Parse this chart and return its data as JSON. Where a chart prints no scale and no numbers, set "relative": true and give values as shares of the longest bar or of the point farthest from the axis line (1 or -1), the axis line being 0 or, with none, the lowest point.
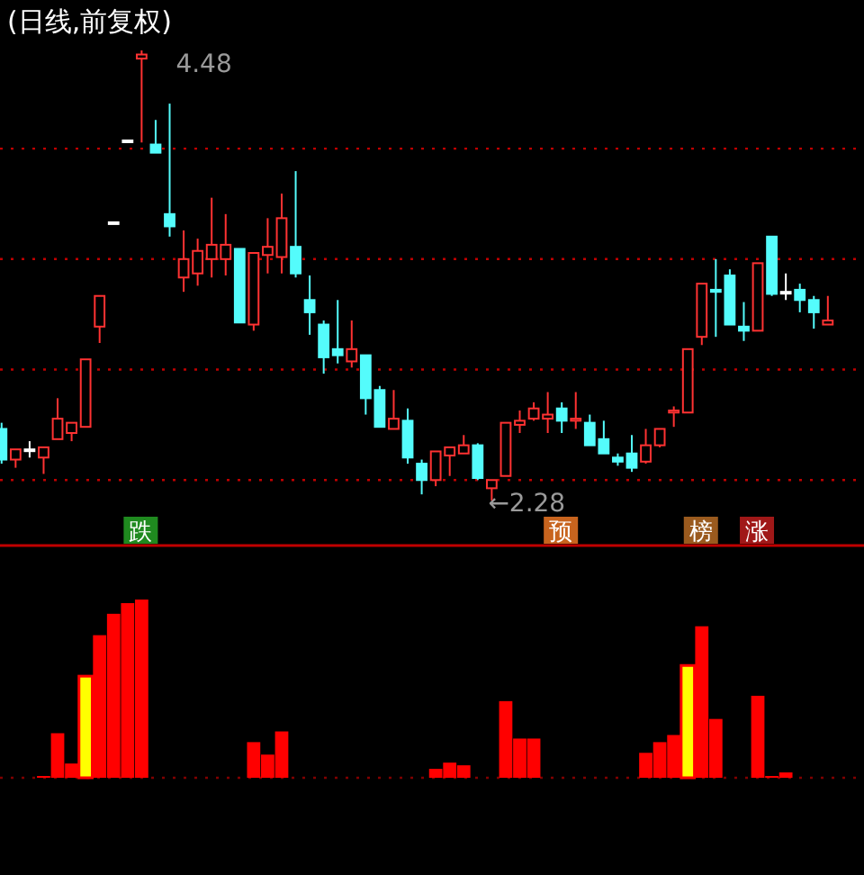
{
  "chart_data": [
    {
      "type": "candlestick",
      "title": "(日线,前复权)",
      "categories": [
        null,
        null,
        null,
        null,
        null,
        null,
        null,
        null,
        null,
        null,
        null,
        null,
        null,
        null,
        null,
        null,
        null,
        null,
        null,
        null,
        null,
        null,
        null,
        null,
        null,
        null,
        null,
        null,
        null,
        null,
        null,
        null,
        null,
        null,
        null,
        null,
        null,
        null,
        null,
        null,
        null,
        null,
        null,
        null,
        null,
        null,
        null,
        null,
        null,
        null,
        null,
        null,
        null,
        null,
        null,
        null,
        null,
        null,
        null,
        null
      ],
      "ohlc": [
        [
          2.63,
          2.66,
          2.46,
          2.48
        ],
        [
          2.48,
          2.53,
          2.44,
          2.53
        ],
        [
          2.53,
          2.57,
          2.49,
          2.53
        ],
        [
          2.49,
          2.54,
          2.41,
          2.54
        ],
        [
          2.58,
          2.78,
          2.58,
          2.68
        ],
        [
          2.61,
          2.66,
          2.57,
          2.66
        ],
        [
          2.64,
          2.97,
          2.64,
          2.97
        ],
        [
          3.13,
          3.28,
          3.05,
          3.28
        ],
        [
          3.64,
          3.64,
          3.64,
          3.64
        ],
        [
          4.04,
          4.04,
          4.04,
          4.04
        ],
        [
          4.44,
          4.48,
          4.03,
          4.46
        ],
        [
          4.02,
          4.14,
          3.98,
          3.98
        ],
        [
          3.68,
          4.22,
          3.57,
          3.62
        ],
        [
          3.37,
          3.6,
          3.3,
          3.46
        ],
        [
          3.39,
          3.56,
          3.33,
          3.5
        ],
        [
          3.46,
          3.76,
          3.37,
          3.53
        ],
        [
          3.46,
          3.68,
          3.38,
          3.53
        ],
        [
          3.51,
          3.51,
          3.15,
          3.15
        ],
        [
          3.14,
          3.49,
          3.11,
          3.49
        ],
        [
          3.48,
          3.66,
          3.39,
          3.52
        ],
        [
          3.47,
          3.78,
          3.39,
          3.66
        ],
        [
          3.52,
          3.89,
          3.37,
          3.39
        ],
        [
          3.26,
          3.38,
          3.09,
          3.2
        ],
        [
          3.14,
          3.16,
          2.9,
          2.98
        ],
        [
          3.02,
          3.26,
          2.95,
          2.99
        ],
        [
          2.96,
          3.16,
          2.93,
          3.02
        ],
        [
          2.99,
          2.99,
          2.7,
          2.78
        ],
        [
          2.82,
          2.84,
          2.64,
          2.64
        ],
        [
          2.63,
          2.82,
          2.63,
          2.68
        ],
        [
          2.67,
          2.73,
          2.46,
          2.49
        ],
        [
          2.46,
          2.48,
          2.31,
          2.38
        ],
        [
          2.38,
          2.52,
          2.35,
          2.52
        ],
        [
          2.5,
          2.54,
          2.4,
          2.54
        ],
        [
          2.51,
          2.6,
          2.51,
          2.55
        ],
        [
          2.55,
          2.56,
          2.38,
          2.39
        ],
        [
          2.34,
          2.38,
          2.28,
          2.38
        ],
        [
          2.4,
          2.66,
          2.4,
          2.66
        ],
        [
          2.65,
          2.72,
          2.61,
          2.67
        ],
        [
          2.68,
          2.76,
          2.67,
          2.73
        ],
        [
          2.68,
          2.81,
          2.61,
          2.7
        ],
        [
          2.73,
          2.76,
          2.61,
          2.67
        ],
        [
          2.67,
          2.81,
          2.63,
          2.68
        ],
        [
          2.66,
          2.7,
          2.55,
          2.55
        ],
        [
          2.58,
          2.67,
          2.51,
          2.51
        ],
        [
          2.49,
          2.51,
          2.45,
          2.47
        ],
        [
          2.51,
          2.6,
          2.42,
          2.44
        ],
        [
          2.47,
          2.63,
          2.46,
          2.55
        ],
        [
          2.55,
          2.63,
          2.54,
          2.63
        ],
        [
          2.71,
          2.74,
          2.64,
          2.72
        ],
        [
          2.71,
          3.02,
          2.71,
          3.02
        ],
        [
          3.08,
          3.34,
          3.04,
          3.34
        ],
        [
          3.31,
          3.46,
          3.08,
          3.3
        ],
        [
          3.38,
          3.41,
          3.14,
          3.14
        ],
        [
          3.13,
          3.25,
          3.06,
          3.11
        ],
        [
          3.11,
          3.44,
          3.11,
          3.44
        ],
        [
          3.57,
          3.57,
          3.28,
          3.29
        ],
        [
          3.3,
          3.39,
          3.26,
          3.3
        ],
        [
          3.31,
          3.34,
          3.2,
          3.26
        ],
        [
          3.26,
          3.28,
          3.12,
          3.2
        ],
        [
          3.14,
          3.28,
          3.14,
          3.16
        ]
      ],
      "yticks": [
        {
          "value": 2.38,
          "label": null
        },
        {
          "value": 2.92,
          "label": null
        },
        {
          "value": 3.46,
          "label": null
        },
        {
          "value": 4.0,
          "label": null
        }
      ],
      "grid": "y",
      "annotations": [
        "4.48",
        "←2.28",
        "跌",
        "预",
        "榜",
        "涨"
      ]
    },
    {
      "type": "bar",
      "relative": true,
      "categories": [
        null,
        null,
        null,
        null,
        null,
        null,
        null,
        null,
        null,
        null,
        null,
        null,
        null,
        null,
        null,
        null,
        null,
        null,
        null,
        null,
        null,
        null,
        null,
        null,
        null,
        null,
        null,
        null,
        null,
        null,
        null,
        null,
        null,
        null,
        null,
        null,
        null,
        null,
        null,
        null,
        null,
        null,
        null,
        null,
        null,
        null,
        null,
        null,
        null,
        null,
        null,
        null,
        null,
        null,
        null,
        null,
        null,
        null,
        null,
        null
      ],
      "values": [
        0,
        0,
        0,
        0.01,
        0.25,
        0.08,
        0.57,
        0.8,
        0.92,
        0.98,
        1.0,
        0,
        0,
        0,
        0,
        0,
        0,
        0,
        0.2,
        0.13,
        0.26,
        0,
        0,
        0,
        0,
        0,
        0,
        0,
        0,
        0,
        0,
        0.05,
        0.085,
        0.07,
        0,
        0,
        0.43,
        0.22,
        0.22,
        0,
        0,
        0,
        0,
        0,
        0,
        0,
        0.14,
        0.2,
        0.24,
        0.63,
        0.85,
        0.33,
        0,
        0,
        0.46,
        0.01,
        0.03,
        0,
        0,
        0
      ],
      "colors": [
        "#ff0000",
        "#ff0000",
        "#ff0000",
        "#ff0000",
        "#ff0000",
        "#ff0000",
        "#ffff00",
        "#ff0000",
        "#ff0000",
        "#ff0000",
        "#ff0000",
        "#ff0000",
        "#ff0000",
        "#ff0000",
        "#ff0000",
        "#ff0000",
        "#ff0000",
        "#ff0000",
        "#ff0000",
        "#ff0000",
        "#ff0000",
        "#ff0000",
        "#ff0000",
        "#ff0000",
        "#ff0000",
        "#ff0000",
        "#ff0000",
        "#ff0000",
        "#ff0000",
        "#ff0000",
        "#ff0000",
        "#ff0000",
        "#ff0000",
        "#ff0000",
        "#ff0000",
        "#ff0000",
        "#ff0000",
        "#ff0000",
        "#ff0000",
        "#ff0000",
        "#ff0000",
        "#ff0000",
        "#ff0000",
        "#ff0000",
        "#ff0000",
        "#ff0000",
        "#ff0000",
        "#ff0000",
        "#ff0000",
        "#ffff00",
        "#ff0000",
        "#ff0000",
        "#ff0000",
        "#ff0000",
        "#ff0000",
        "#ff0000",
        "#ff0000",
        "#ff0000",
        "#ff0000",
        "#ff0000"
      ]
    }
  ]
}
